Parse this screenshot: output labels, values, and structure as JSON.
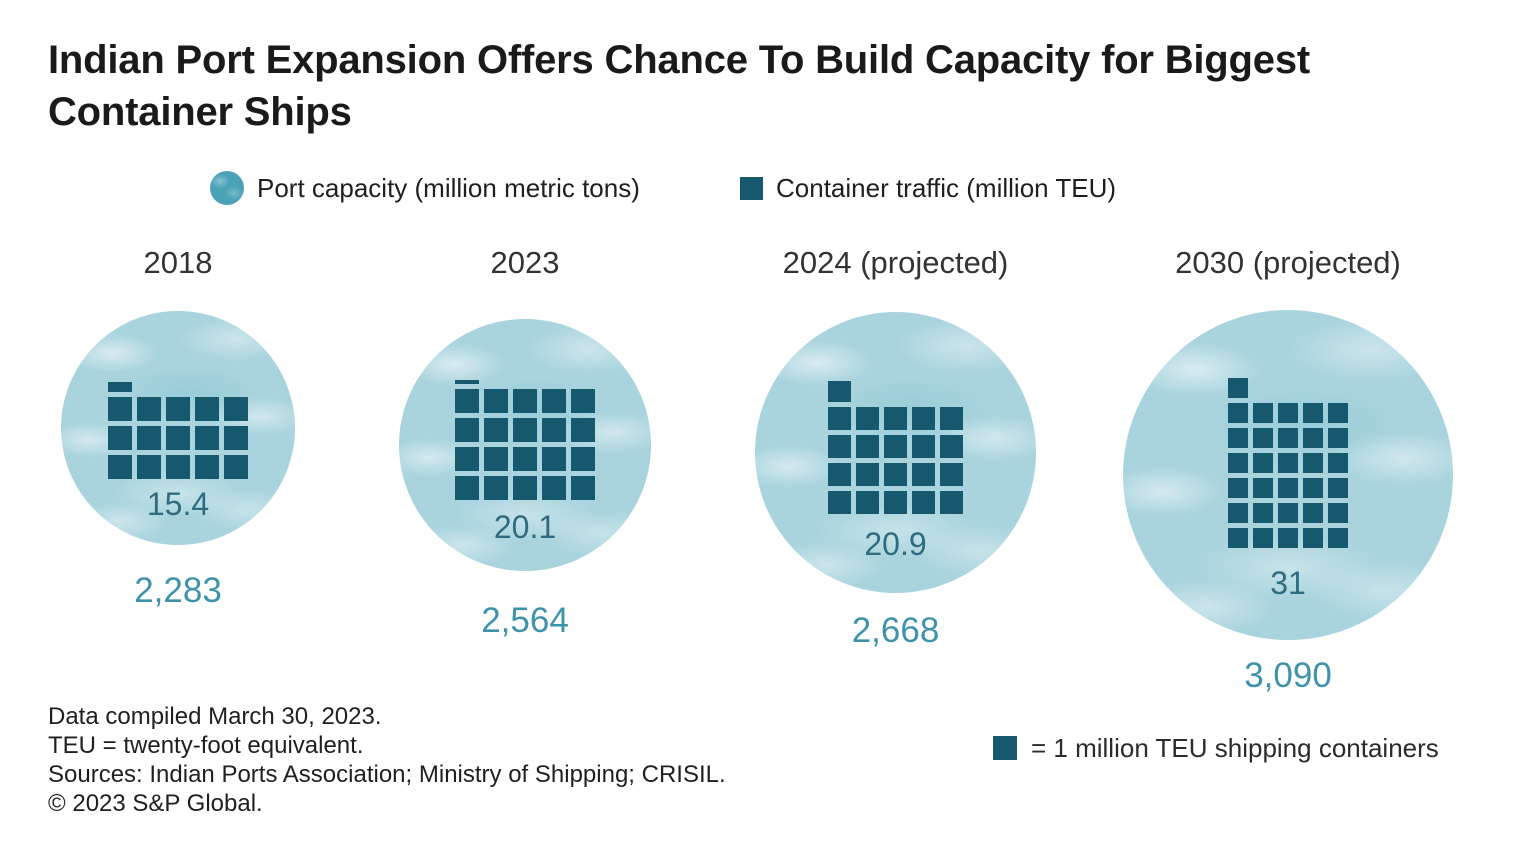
{
  "title": "Indian Port Expansion Offers Chance To Build Capacity for Biggest Container Ships",
  "legend": {
    "port_capacity": {
      "label": "Port capacity (million metric tons)",
      "swatch": "circle-icon",
      "color": "#4aa2b8"
    },
    "container_traffic": {
      "label": "Container traffic (million TEU)",
      "swatch": "square-icon",
      "color": "#16596f"
    }
  },
  "chart_data": {
    "type": "pictograph",
    "description": "Four water-textured circles sized by port capacity (million metric tons); each contains a grid of unit squares, one square = 1 million TEU of container traffic.",
    "unit_square_value": "1 square = 1 million TEU",
    "squares_per_row": 5,
    "groups": [
      {
        "year": "2018",
        "container_traffic_million_teu": 15.4,
        "teu_display": "15.4",
        "port_capacity_million_metric_tons": 2283,
        "capacity_display": "2,283"
      },
      {
        "year": "2023",
        "container_traffic_million_teu": 20.1,
        "teu_display": "20.1",
        "port_capacity_million_metric_tons": 2564,
        "capacity_display": "2,564"
      },
      {
        "year": "2024 (projected)",
        "container_traffic_million_teu": 20.9,
        "teu_display": "20.9",
        "port_capacity_million_metric_tons": 2668,
        "capacity_display": "2,668"
      },
      {
        "year": "2030 (projected)",
        "container_traffic_million_teu": 31,
        "teu_display": "31",
        "port_capacity_million_metric_tons": 3090,
        "capacity_display": "3,090"
      }
    ],
    "colors": {
      "square": "#16596f",
      "bubble_fill": "#a9d4de",
      "teu_value_text": "#2f6c81",
      "capacity_value_text": "#3e93ab",
      "legend_circle": "#4aa2b8"
    },
    "legend_position": "top",
    "grid": false
  },
  "unit_note": {
    "label": "= 1 million TEU shipping containers"
  },
  "footer": {
    "lines": [
      "Data compiled March 30, 2023.",
      "TEU = twenty-foot equivalent.",
      "Sources: Indian Ports Association; Ministry of Shipping; CRISIL.",
      "© 2023 S&P Global."
    ]
  }
}
